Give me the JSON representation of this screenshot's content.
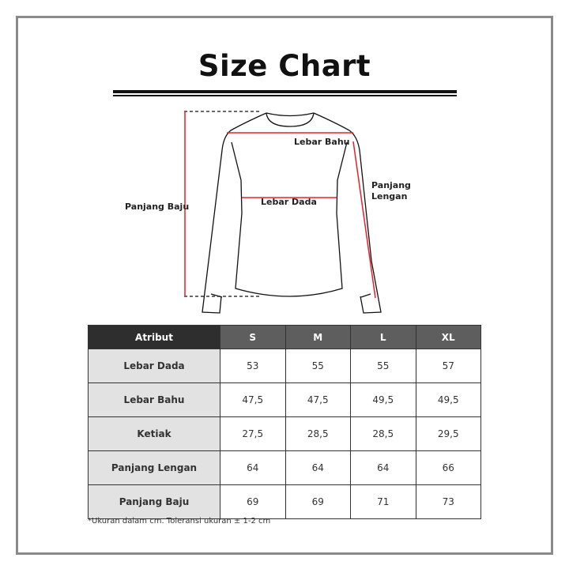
{
  "title": "Size Chart",
  "labels": {
    "panjang_baju": "Panjang Baju",
    "lebar_bahu": "Lebar Bahu",
    "lebar_dada": "Lebar Dada",
    "panjang_lengan_1": "Panjang",
    "panjang_lengan_2": "Lengan"
  },
  "table": {
    "headers": [
      "Atribut",
      "S",
      "M",
      "L",
      "XL"
    ],
    "rows": [
      {
        "attr": "Lebar Dada",
        "values": [
          "53",
          "55",
          "55",
          "57"
        ]
      },
      {
        "attr": "Lebar Bahu",
        "values": [
          "47,5",
          "47,5",
          "49,5",
          "49,5"
        ]
      },
      {
        "attr": "Ketiak",
        "values": [
          "27,5",
          "28,5",
          "28,5",
          "29,5"
        ]
      },
      {
        "attr": "Panjang Lengan",
        "values": [
          "64",
          "64",
          "64",
          "66"
        ]
      },
      {
        "attr": "Panjang Baju",
        "values": [
          "69",
          "69",
          "71",
          "73"
        ]
      }
    ]
  },
  "note": "*Ukuran dalam cm. Toleransi ukuran ± 1-2 cm",
  "colors": {
    "measure_line": "#e8202a",
    "header_dark": "#2e2e2e",
    "header": "#5e5e5e",
    "attr_bg": "#e2e2e2"
  }
}
